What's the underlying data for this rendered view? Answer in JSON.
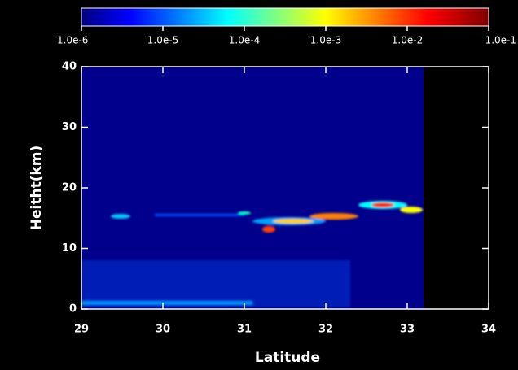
{
  "chart_data": {
    "type": "heatmap",
    "x_label": "Latitude",
    "y_label": "Heitht(km)",
    "xlim": [
      29,
      34
    ],
    "xticks": [
      29,
      30,
      31,
      32,
      33,
      34
    ],
    "ylim": [
      0,
      40
    ],
    "yticks": [
      0,
      10,
      20,
      30,
      40
    ],
    "colorbar": {
      "log_scale": true,
      "lim": [
        1e-06,
        0.1
      ],
      "ticks": [
        {
          "value": 1e-06,
          "label": "1.0e-6"
        },
        {
          "value": 1e-05,
          "label": "1.0e-5"
        },
        {
          "value": 0.0001,
          "label": "1.0e-4"
        },
        {
          "value": 0.001,
          "label": "1.0e-3"
        },
        {
          "value": 0.01,
          "label": "1.0e-2"
        },
        {
          "value": 0.1,
          "label": "1.0e-1"
        }
      ]
    }
  }
}
